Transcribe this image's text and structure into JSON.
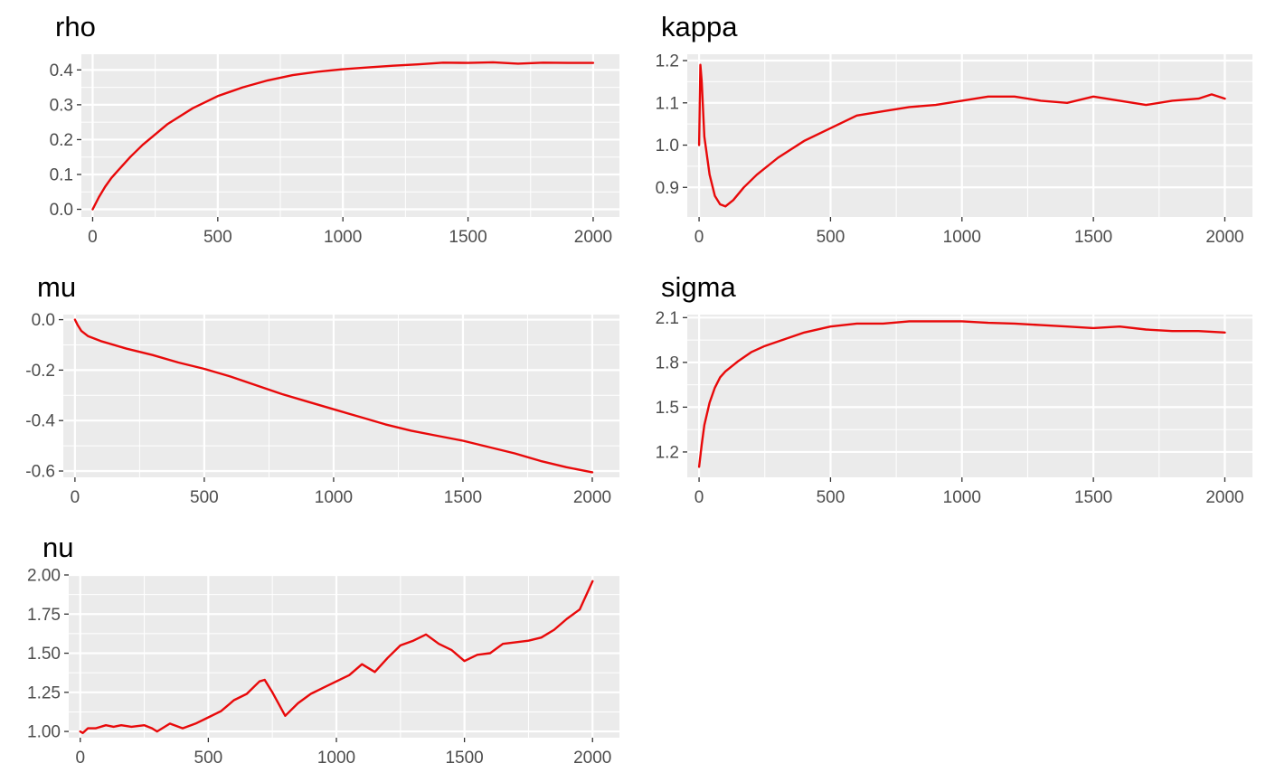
{
  "colors": {
    "panel_bg": "#ebebeb",
    "grid_major": "#ffffff",
    "line": "#e8090a",
    "tick_text": "#4d4d4d"
  },
  "chart_data": [
    {
      "type": "line",
      "title": "rho",
      "xlim": [
        -45,
        2105
      ],
      "ylim": [
        -0.022,
        0.445
      ],
      "xticks": [
        0,
        500,
        1000,
        1500,
        2000
      ],
      "xtick_labels": [
        "0",
        "500",
        "1000",
        "1500",
        "2000"
      ],
      "yticks": [
        0.0,
        0.1,
        0.2,
        0.3,
        0.4
      ],
      "ytick_labels": [
        "0.0",
        "0.1",
        "0.2",
        "0.3",
        "0.4"
      ],
      "grid": true,
      "series": [
        {
          "x": [
            0,
            25,
            50,
            75,
            100,
            150,
            200,
            250,
            300,
            400,
            500,
            600,
            700,
            800,
            900,
            1000,
            1100,
            1200,
            1300,
            1400,
            1500,
            1600,
            1700,
            1800,
            1900,
            2000
          ],
          "y": [
            0.0,
            0.035,
            0.065,
            0.09,
            0.11,
            0.15,
            0.185,
            0.215,
            0.245,
            0.29,
            0.325,
            0.35,
            0.37,
            0.385,
            0.395,
            0.402,
            0.407,
            0.412,
            0.416,
            0.421,
            0.42,
            0.422,
            0.418,
            0.421,
            0.42,
            0.42
          ]
        }
      ]
    },
    {
      "type": "line",
      "title": "kappa",
      "xlim": [
        -45,
        2105
      ],
      "ylim": [
        0.83,
        1.215
      ],
      "xticks": [
        0,
        500,
        1000,
        1500,
        2000
      ],
      "xtick_labels": [
        "0",
        "500",
        "1000",
        "1500",
        "2000"
      ],
      "yticks": [
        0.9,
        1.0,
        1.1,
        1.2
      ],
      "ytick_labels": [
        "0.9",
        "1.0",
        "1.1",
        "1.2"
      ],
      "grid": true,
      "series": [
        {
          "x": [
            0,
            5,
            10,
            20,
            40,
            60,
            80,
            100,
            130,
            170,
            220,
            300,
            400,
            500,
            600,
            700,
            800,
            900,
            1000,
            1100,
            1200,
            1300,
            1400,
            1500,
            1600,
            1700,
            1800,
            1900,
            1950,
            2000
          ],
          "y": [
            1.0,
            1.19,
            1.15,
            1.02,
            0.93,
            0.88,
            0.86,
            0.855,
            0.87,
            0.9,
            0.93,
            0.97,
            1.01,
            1.04,
            1.07,
            1.08,
            1.09,
            1.095,
            1.105,
            1.115,
            1.115,
            1.105,
            1.1,
            1.115,
            1.105,
            1.095,
            1.105,
            1.11,
            1.12,
            1.11
          ]
        }
      ]
    },
    {
      "type": "line",
      "title": "mu",
      "xlim": [
        -45,
        2105
      ],
      "ylim": [
        -0.625,
        0.02
      ],
      "xticks": [
        0,
        500,
        1000,
        1500,
        2000
      ],
      "xtick_labels": [
        "0",
        "500",
        "1000",
        "1500",
        "2000"
      ],
      "yticks": [
        0.0,
        -0.2,
        -0.4,
        -0.6
      ],
      "ytick_labels": [
        "0.0",
        "-0.2",
        "-0.4",
        "-0.6"
      ],
      "grid": true,
      "series": [
        {
          "x": [
            0,
            10,
            25,
            50,
            100,
            200,
            300,
            400,
            500,
            600,
            700,
            800,
            900,
            1000,
            1100,
            1200,
            1300,
            1400,
            1500,
            1600,
            1700,
            1800,
            1900,
            2000
          ],
          "y": [
            0.0,
            -0.02,
            -0.045,
            -0.065,
            -0.085,
            -0.115,
            -0.14,
            -0.17,
            -0.195,
            -0.225,
            -0.26,
            -0.295,
            -0.325,
            -0.355,
            -0.385,
            -0.415,
            -0.44,
            -0.46,
            -0.48,
            -0.505,
            -0.53,
            -0.56,
            -0.585,
            -0.605
          ]
        }
      ]
    },
    {
      "type": "line",
      "title": "sigma",
      "xlim": [
        -45,
        2105
      ],
      "ylim": [
        1.03,
        2.12
      ],
      "xticks": [
        0,
        500,
        1000,
        1500,
        2000
      ],
      "xtick_labels": [
        "0",
        "500",
        "1000",
        "1500",
        "2000"
      ],
      "yticks": [
        1.2,
        1.5,
        1.8,
        2.1
      ],
      "ytick_labels": [
        "1.2",
        "1.5",
        "1.8",
        "2.1"
      ],
      "grid": true,
      "series": [
        {
          "x": [
            0,
            10,
            20,
            40,
            60,
            80,
            100,
            150,
            200,
            250,
            300,
            400,
            500,
            600,
            700,
            800,
            900,
            1000,
            1100,
            1200,
            1300,
            1400,
            1500,
            1600,
            1700,
            1800,
            1900,
            2000
          ],
          "y": [
            1.1,
            1.25,
            1.38,
            1.53,
            1.63,
            1.7,
            1.74,
            1.81,
            1.87,
            1.91,
            1.94,
            2.0,
            2.04,
            2.06,
            2.06,
            2.075,
            2.075,
            2.075,
            2.065,
            2.06,
            2.05,
            2.04,
            2.03,
            2.04,
            2.02,
            2.01,
            2.01,
            2.0
          ]
        }
      ]
    },
    {
      "type": "line",
      "title": "nu",
      "xlim": [
        -45,
        2105
      ],
      "ylim": [
        0.96,
        2.0
      ],
      "xticks": [
        0,
        500,
        1000,
        1500,
        2000
      ],
      "xtick_labels": [
        "0",
        "500",
        "1000",
        "1500",
        "2000"
      ],
      "yticks": [
        1.0,
        1.25,
        1.5,
        1.75,
        2.0
      ],
      "ytick_labels": [
        "1.00",
        "1.25",
        "1.50",
        "1.75",
        "2.00"
      ],
      "grid": true,
      "series": [
        {
          "x": [
            0,
            10,
            30,
            60,
            100,
            130,
            160,
            200,
            250,
            280,
            300,
            350,
            400,
            450,
            500,
            550,
            600,
            650,
            700,
            720,
            750,
            800,
            850,
            900,
            950,
            1000,
            1050,
            1100,
            1150,
            1200,
            1250,
            1300,
            1350,
            1400,
            1450,
            1500,
            1550,
            1600,
            1650,
            1700,
            1750,
            1800,
            1850,
            1900,
            1950,
            2000
          ],
          "y": [
            1.0,
            0.99,
            1.02,
            1.02,
            1.04,
            1.03,
            1.04,
            1.03,
            1.04,
            1.02,
            1.0,
            1.05,
            1.02,
            1.05,
            1.09,
            1.13,
            1.2,
            1.24,
            1.32,
            1.33,
            1.25,
            1.1,
            1.18,
            1.24,
            1.28,
            1.32,
            1.36,
            1.43,
            1.38,
            1.47,
            1.55,
            1.58,
            1.62,
            1.56,
            1.52,
            1.45,
            1.49,
            1.5,
            1.56,
            1.57,
            1.58,
            1.6,
            1.65,
            1.72,
            1.78,
            1.96
          ]
        }
      ]
    }
  ]
}
